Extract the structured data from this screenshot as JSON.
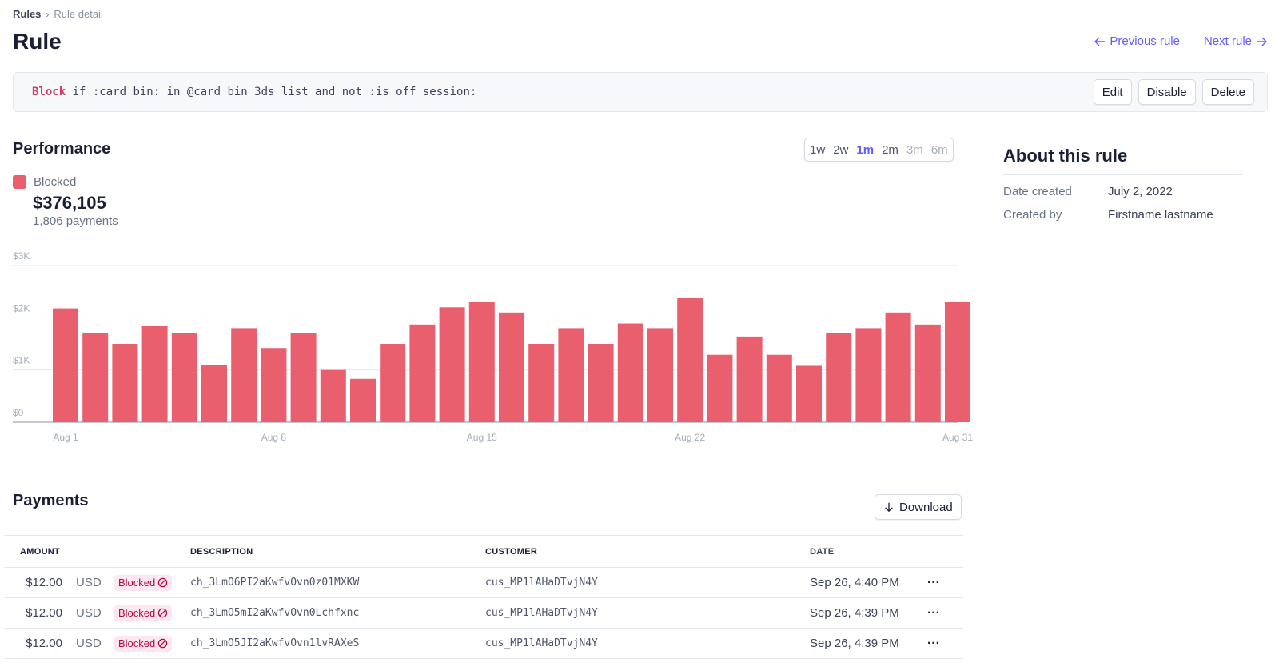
{
  "breadcrumb": {
    "root": "Rules",
    "current": "Rule detail"
  },
  "page_title": "Rule",
  "nav": {
    "prev": "Previous rule",
    "next": "Next rule"
  },
  "rule": {
    "action": "Block",
    "condition": " if :card_bin: in @card_bin_3ds_list and not :is_off_session:",
    "buttons": {
      "edit": "Edit",
      "disable": "Disable",
      "delete": "Delete"
    }
  },
  "performance": {
    "title": "Performance",
    "ranges": [
      {
        "label": "1w",
        "state": "normal"
      },
      {
        "label": "2w",
        "state": "normal"
      },
      {
        "label": "1m",
        "state": "active"
      },
      {
        "label": "2m",
        "state": "normal"
      },
      {
        "label": "3m",
        "state": "disabled"
      },
      {
        "label": "6m",
        "state": "disabled"
      }
    ],
    "legend_label": "Blocked",
    "total_amount": "$376,105",
    "total_count": "1,806 payments"
  },
  "chart_data": {
    "type": "bar",
    "series": [
      {
        "name": "Blocked",
        "color": "#ea5f6e",
        "values": [
          2180,
          1700,
          1500,
          1850,
          1700,
          1100,
          1800,
          1420,
          1700,
          1000,
          830,
          1500,
          1870,
          2200,
          2300,
          2100,
          1500,
          1800,
          1500,
          1890,
          1800,
          2380,
          1290,
          1640,
          1290,
          1080,
          1700,
          1800,
          2100,
          1870,
          2300
        ]
      }
    ],
    "x_tick_labels": [
      "Aug 1",
      "Aug 8",
      "Aug 15",
      "Aug 22",
      "Aug 31"
    ],
    "x_tick_index": [
      0,
      7,
      14,
      21,
      30
    ],
    "y_tick_labels": [
      "$0",
      "$1K",
      "$2K",
      "$3K"
    ],
    "y_tick_values": [
      0,
      1000,
      2000,
      3000
    ],
    "ylim": [
      0,
      3000
    ],
    "grid": true
  },
  "about": {
    "title": "About this rule",
    "rows": [
      {
        "key": "Date created",
        "value": "July 2, 2022"
      },
      {
        "key": "Created by",
        "value": "Firstname lastname"
      }
    ]
  },
  "payments": {
    "title": "Payments",
    "download_label": "Download",
    "columns": {
      "amount": "AMOUNT",
      "description": "DESCRIPTION",
      "customer": "CUSTOMER",
      "date": "DATE"
    },
    "rows": [
      {
        "amount": "$12.00",
        "currency": "USD",
        "status": "Blocked",
        "description": "ch_3LmO6PI2aKwfvOvn0z01MXKW",
        "customer": "cus_MP1lAHaDTvjN4Y",
        "date": "Sep 26, 4:40 PM"
      },
      {
        "amount": "$12.00",
        "currency": "USD",
        "status": "Blocked",
        "description": "ch_3LmO5mI2aKwfvOvn0Lchfxnc",
        "customer": "cus_MP1lAHaDTvjN4Y",
        "date": "Sep 26, 4:39 PM"
      },
      {
        "amount": "$12.00",
        "currency": "USD",
        "status": "Blocked",
        "description": "ch_3LmO5JI2aKwfvOvn1lvRAXeS",
        "customer": "cus_MP1lAHaDTvjN4Y",
        "date": "Sep 26, 4:39 PM"
      }
    ]
  },
  "icons": {
    "more": "more-horizontal-icon",
    "blocked": "blocked-icon",
    "download": "arrow-down-icon"
  }
}
